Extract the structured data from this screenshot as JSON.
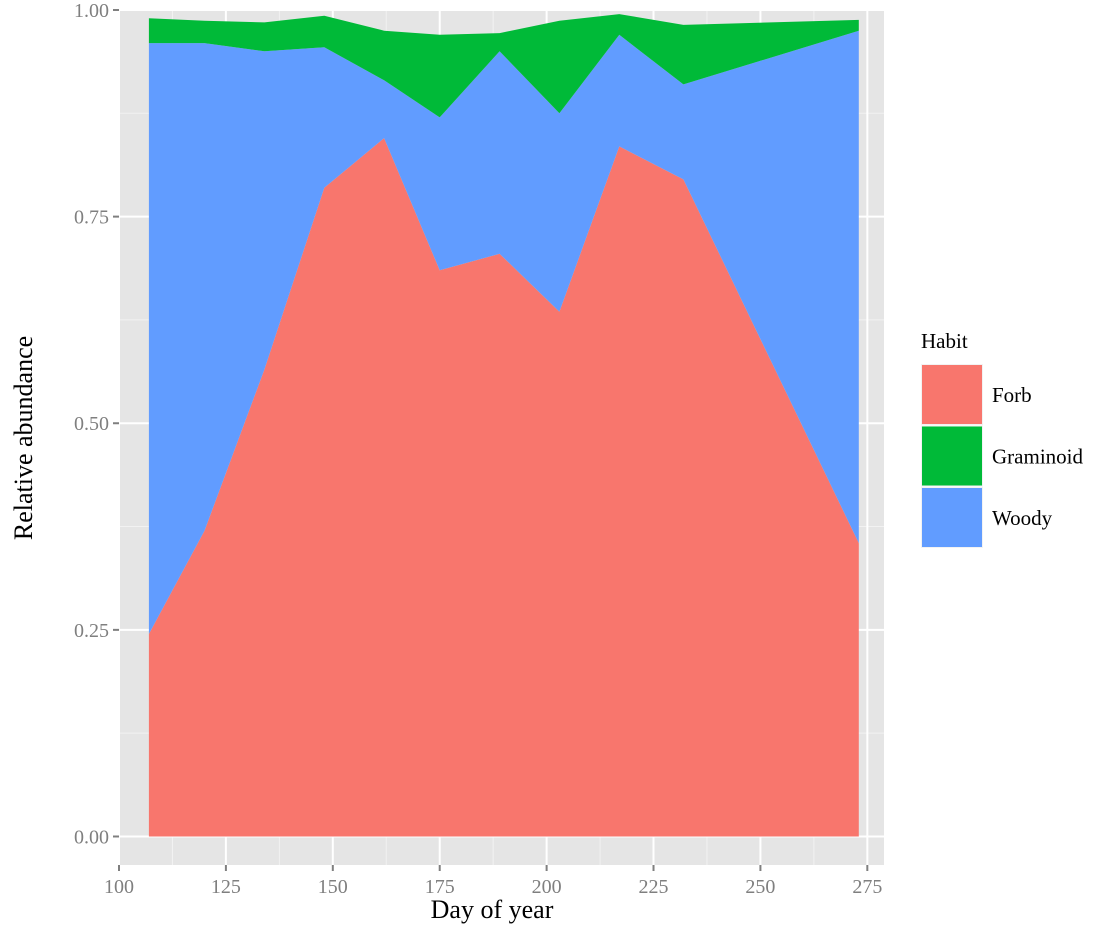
{
  "chart_data": {
    "type": "area",
    "stacked": true,
    "x": [
      107,
      120,
      134,
      148,
      162,
      175,
      189,
      203,
      217,
      232,
      273
    ],
    "series": [
      {
        "name": "Forb",
        "color": "#F8766D",
        "values": [
          0.245,
          0.37,
          0.565,
          0.785,
          0.845,
          0.685,
          0.705,
          0.635,
          0.835,
          0.795,
          0.355
        ]
      },
      {
        "name": "Woody",
        "color": "#619CFF",
        "values": [
          0.715,
          0.59,
          0.385,
          0.17,
          0.07,
          0.185,
          0.245,
          0.24,
          0.135,
          0.115,
          0.62
        ]
      },
      {
        "name": "Graminoid",
        "color": "#00BA38",
        "values": [
          0.03,
          0.027,
          0.035,
          0.038,
          0.06,
          0.1,
          0.022,
          0.112,
          0.025,
          0.072,
          0.013
        ]
      }
    ],
    "xlabel": "Day of year",
    "ylabel": "Relative abundance",
    "xlim": [
      100,
      280
    ],
    "ylim": [
      0,
      1.0
    ],
    "xticks": [
      100,
      125,
      150,
      175,
      200,
      225,
      250,
      275
    ],
    "yticks": [
      0.0,
      0.25,
      0.5,
      0.75,
      1.0
    ],
    "ytick_labels": [
      "0.00",
      "0.25",
      "0.50",
      "0.75",
      "1.00"
    ],
    "grid": true,
    "legend": {
      "title": "Habit",
      "position": "right",
      "items": [
        {
          "label": "Forb",
          "color": "#F8766D"
        },
        {
          "label": "Graminoid",
          "color": "#00BA38"
        },
        {
          "label": "Woody",
          "color": "#619CFF"
        }
      ]
    },
    "panel_background": "#E5E5E5",
    "grid_color": "#FFFFFF"
  }
}
